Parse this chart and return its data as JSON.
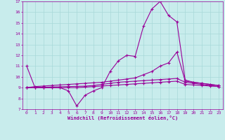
{
  "xlabel": "Windchill (Refroidissement éolien,°C)",
  "ylabel": "",
  "background_color": "#c8ecec",
  "grid_color": "#a8d8d8",
  "line_color": "#990099",
  "xlim": [
    -0.5,
    23.5
  ],
  "ylim": [
    7,
    17
  ],
  "xticks": [
    0,
    1,
    2,
    3,
    4,
    5,
    6,
    7,
    8,
    9,
    10,
    11,
    12,
    13,
    14,
    15,
    16,
    17,
    18,
    19,
    20,
    21,
    22,
    23
  ],
  "yticks": [
    7,
    8,
    9,
    10,
    11,
    12,
    13,
    14,
    15,
    16,
    17
  ],
  "series1_x": [
    0,
    1,
    2,
    3,
    4,
    5,
    6,
    7,
    8,
    9,
    10,
    11,
    12,
    13,
    14,
    15,
    16,
    17,
    18,
    19,
    20,
    21,
    22,
    23
  ],
  "series1_y": [
    11,
    9,
    9,
    9,
    9,
    8.7,
    7.3,
    8.3,
    8.7,
    9,
    10.5,
    11.5,
    12,
    11.9,
    14.7,
    16.3,
    17,
    15.7,
    15.1,
    9.7,
    9.5,
    9.4,
    9.3,
    9.2
  ],
  "series2_x": [
    0,
    1,
    2,
    3,
    4,
    5,
    6,
    7,
    8,
    9,
    10,
    11,
    12,
    13,
    14,
    15,
    16,
    17,
    18,
    19,
    20,
    21,
    22,
    23
  ],
  "series2_y": [
    9,
    9.1,
    9.15,
    9.2,
    9.25,
    9.3,
    9.35,
    9.4,
    9.45,
    9.5,
    9.6,
    9.7,
    9.8,
    9.9,
    10.2,
    10.5,
    11.0,
    11.3,
    12.3,
    9.6,
    9.5,
    9.4,
    9.3,
    9.2
  ],
  "series3_x": [
    0,
    1,
    2,
    3,
    4,
    5,
    6,
    7,
    8,
    9,
    10,
    11,
    12,
    13,
    14,
    15,
    16,
    17,
    18,
    19,
    20,
    21,
    22,
    23
  ],
  "series3_y": [
    9,
    9.02,
    9.04,
    9.06,
    9.08,
    9.1,
    9.12,
    9.14,
    9.2,
    9.3,
    9.4,
    9.5,
    9.55,
    9.6,
    9.65,
    9.7,
    9.75,
    9.8,
    9.85,
    9.5,
    9.4,
    9.3,
    9.2,
    9.1
  ],
  "series4_x": [
    0,
    1,
    2,
    3,
    4,
    5,
    6,
    7,
    8,
    9,
    10,
    11,
    12,
    13,
    14,
    15,
    16,
    17,
    18,
    19,
    20,
    21,
    22,
    23
  ],
  "series4_y": [
    9,
    9.0,
    9.0,
    9.0,
    9.0,
    9.0,
    9.0,
    9.05,
    9.1,
    9.15,
    9.2,
    9.25,
    9.3,
    9.35,
    9.4,
    9.45,
    9.5,
    9.55,
    9.6,
    9.3,
    9.25,
    9.2,
    9.15,
    9.1
  ]
}
